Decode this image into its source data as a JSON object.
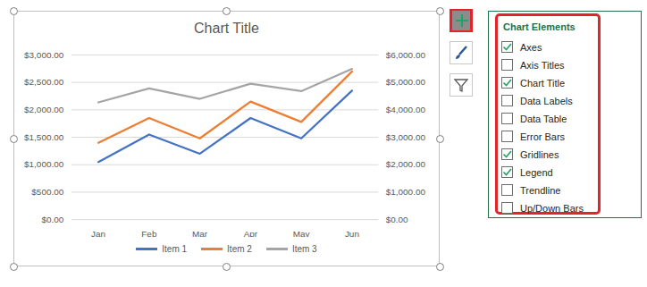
{
  "chart_data": {
    "type": "line",
    "title": "Chart Title",
    "categories": [
      "Jan",
      "Feb",
      "Mar",
      "Apr",
      "May",
      "Jun"
    ],
    "series": [
      {
        "name": "Item 1",
        "color": "#4472c4",
        "values": [
          1050,
          1550,
          1200,
          1850,
          1480,
          2350
        ]
      },
      {
        "name": "Item 2",
        "color": "#ed7d31",
        "values": [
          1400,
          1850,
          1480,
          2150,
          1780,
          2700
        ]
      },
      {
        "name": "Item 3",
        "color": "#a5a5a5",
        "axis": "y2",
        "values": [
          4270,
          4780,
          4400,
          4950,
          4680,
          5490
        ]
      }
    ],
    "ylim": [
      0,
      3000
    ],
    "yticks": [
      {
        "value": 0,
        "label": "$0.00"
      },
      {
        "value": 500,
        "label": "$500.00"
      },
      {
        "value": 1000,
        "label": "$1,000.00"
      },
      {
        "value": 1500,
        "label": "$1,500.00"
      },
      {
        "value": 2000,
        "label": "$2,000.00"
      },
      {
        "value": 2500,
        "label": "$2,500.00"
      },
      {
        "value": 3000,
        "label": "$3,000.00"
      }
    ],
    "y2lim": [
      0,
      6000
    ],
    "y2ticks": [
      {
        "value": 0,
        "label": "$0.00"
      },
      {
        "value": 1000,
        "label": "$1,000.00"
      },
      {
        "value": 2000,
        "label": "$2,000.00"
      },
      {
        "value": 3000,
        "label": "$3,000.00"
      },
      {
        "value": 4000,
        "label": "$4,000.00"
      },
      {
        "value": 5000,
        "label": "$5,000.00"
      },
      {
        "value": 6000,
        "label": "$6,000.00"
      }
    ],
    "grid": true,
    "legend": "bottom"
  },
  "chart_elements_panel": {
    "title": "Chart Elements",
    "items": [
      {
        "label": "Axes",
        "checked": true
      },
      {
        "label": "Axis Titles",
        "checked": false
      },
      {
        "label": "Chart Title",
        "checked": true
      },
      {
        "label": "Data Labels",
        "checked": false
      },
      {
        "label": "Data Table",
        "checked": false
      },
      {
        "label": "Error Bars",
        "checked": false
      },
      {
        "label": "Gridlines",
        "checked": true
      },
      {
        "label": "Legend",
        "checked": true
      },
      {
        "label": "Trendline",
        "checked": false
      },
      {
        "label": "Up/Down Bars",
        "checked": false
      }
    ]
  }
}
